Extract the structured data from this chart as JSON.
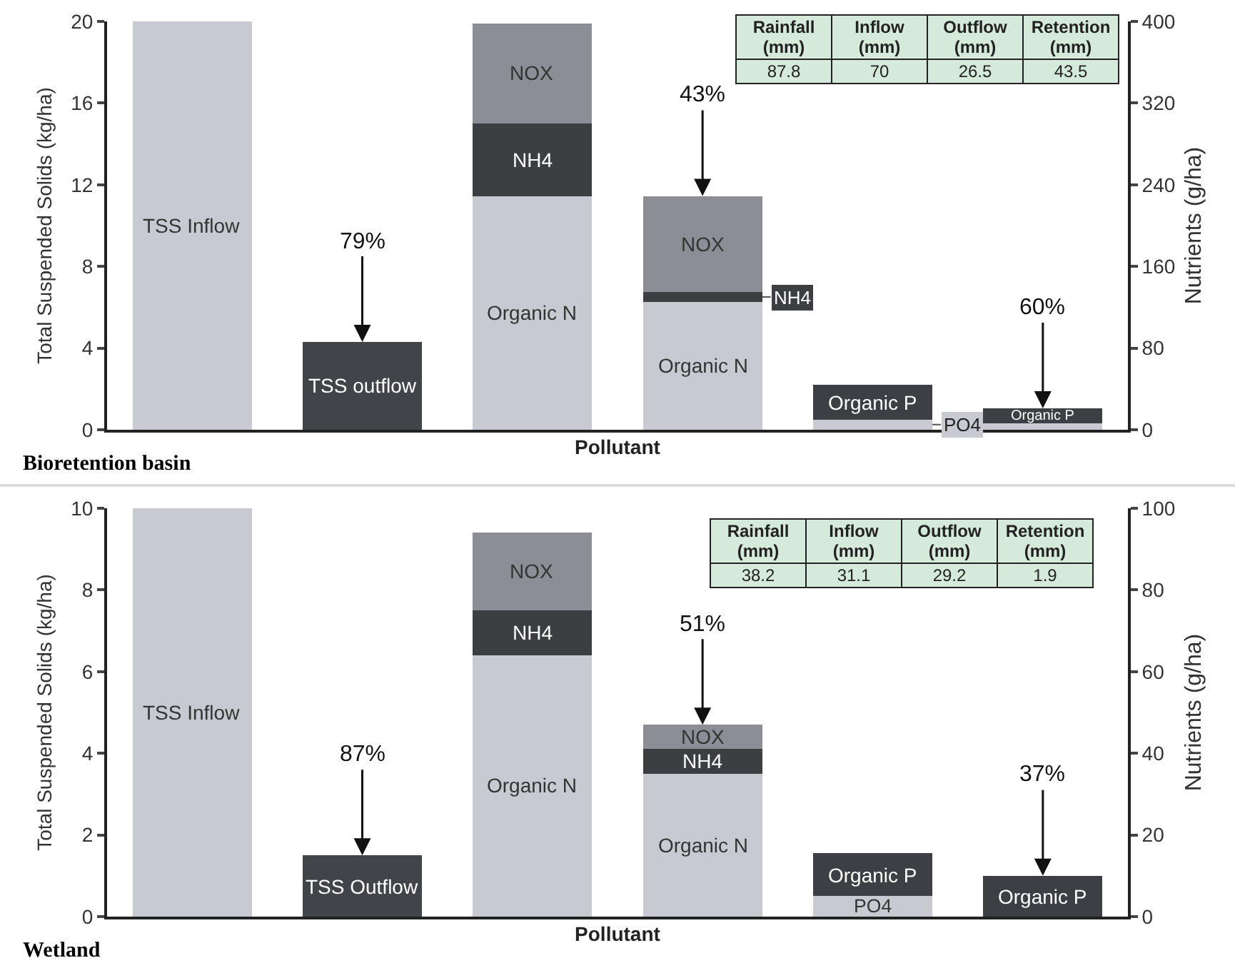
{
  "chart_data": [
    {
      "type": "bar",
      "title": "Bioretention basin",
      "xlabel": "Pollutant",
      "ylabel": "Total Suspended Solids (kg/ha)",
      "y2label": "Nutrients (g/ha)",
      "stacked": true,
      "legend": false,
      "grid": false,
      "tick_labels": "y",
      "categories": [
        null,
        null,
        null,
        null,
        null,
        null
      ],
      "ylim": [
        0,
        20
      ],
      "yticks": [
        0,
        4,
        8,
        12,
        16,
        20
      ],
      "y2lim": [
        0,
        400
      ],
      "y2ticks": [
        0,
        80,
        160,
        240,
        320,
        400
      ],
      "annotations": [
        "79%",
        "43%",
        "60%",
        "Rainfall (mm)",
        "Inflow (mm)",
        "Outflow (mm)",
        "Retention (mm)",
        "87.8",
        "70",
        "26.5",
        "43.5"
      ],
      "series": [
        {
          "name": "TSS Inflow",
          "color": "#c9c9d1",
          "values": [
            20,
            null,
            null,
            null,
            null,
            null
          ]
        },
        {
          "name": "TSS outflow",
          "color": "#414449",
          "values": [
            null,
            4.3,
            null,
            null,
            null,
            null
          ]
        },
        {
          "name": "Organic N",
          "color": "#c9c9d1",
          "axis": "y2",
          "values": [
            null,
            null,
            229,
            125,
            null,
            null
          ]
        },
        {
          "name": "NH4",
          "color": "#3d3e42",
          "axis": "y2",
          "values": [
            null,
            null,
            71,
            10,
            null,
            null
          ]
        },
        {
          "name": "NOX",
          "color": "#8d8d95",
          "axis": "y2",
          "values": [
            null,
            null,
            98,
            94,
            null,
            null
          ]
        },
        {
          "name": "PO4",
          "color": "#c9c9d1",
          "axis": "y2",
          "values": [
            null,
            null,
            null,
            null,
            10,
            6
          ]
        },
        {
          "name": "Organic P",
          "color": "#3d3f44",
          "axis": "y2",
          "values": [
            null,
            null,
            null,
            null,
            34,
            15
          ]
        }
      ]
    },
    {
      "type": "bar",
      "title": "Wetland",
      "xlabel": "Pollutant",
      "ylabel": "Total Suspended Solids (kg/ha)",
      "y2label": "Nutrients (g/ha)",
      "stacked": true,
      "legend": false,
      "grid": false,
      "tick_labels": "y",
      "categories": [
        null,
        null,
        null,
        null,
        null,
        null
      ],
      "ylim": [
        0,
        10
      ],
      "yticks": [
        0,
        2,
        4,
        6,
        8,
        10
      ],
      "y2lim": [
        0,
        100
      ],
      "y2ticks": [
        0,
        20,
        40,
        60,
        80,
        100
      ],
      "annotations": [
        "87%",
        "51%",
        "37%",
        "Rainfall (mm)",
        "Inflow (mm)",
        "Outflow (mm)",
        "Retention (mm)",
        "38.2",
        "31.1",
        "29.2",
        "1.9"
      ],
      "series": [
        {
          "name": "TSS Inflow",
          "color": "#c9c9d1",
          "values": [
            10,
            null,
            null,
            null,
            null,
            null
          ]
        },
        {
          "name": "TSS Outflow",
          "color": "#414449",
          "values": [
            null,
            1.5,
            null,
            null,
            null,
            null
          ]
        },
        {
          "name": "Organic N",
          "color": "#c9c9d1",
          "axis": "y2",
          "values": [
            null,
            null,
            64,
            35,
            null,
            null
          ]
        },
        {
          "name": "NH4",
          "color": "#3d3e42",
          "axis": "y2",
          "values": [
            null,
            null,
            11,
            6,
            null,
            null
          ]
        },
        {
          "name": "NOX",
          "color": "#8d8d95",
          "axis": "y2",
          "values": [
            null,
            null,
            19,
            6,
            null,
            null
          ]
        },
        {
          "name": "PO4",
          "color": "#c9c9d1",
          "axis": "y2",
          "values": [
            null,
            null,
            null,
            null,
            5,
            null
          ]
        },
        {
          "name": "Organic P",
          "color": "#3d3f44",
          "axis": "y2",
          "values": [
            null,
            null,
            null,
            null,
            10.5,
            10
          ]
        }
      ]
    }
  ]
}
